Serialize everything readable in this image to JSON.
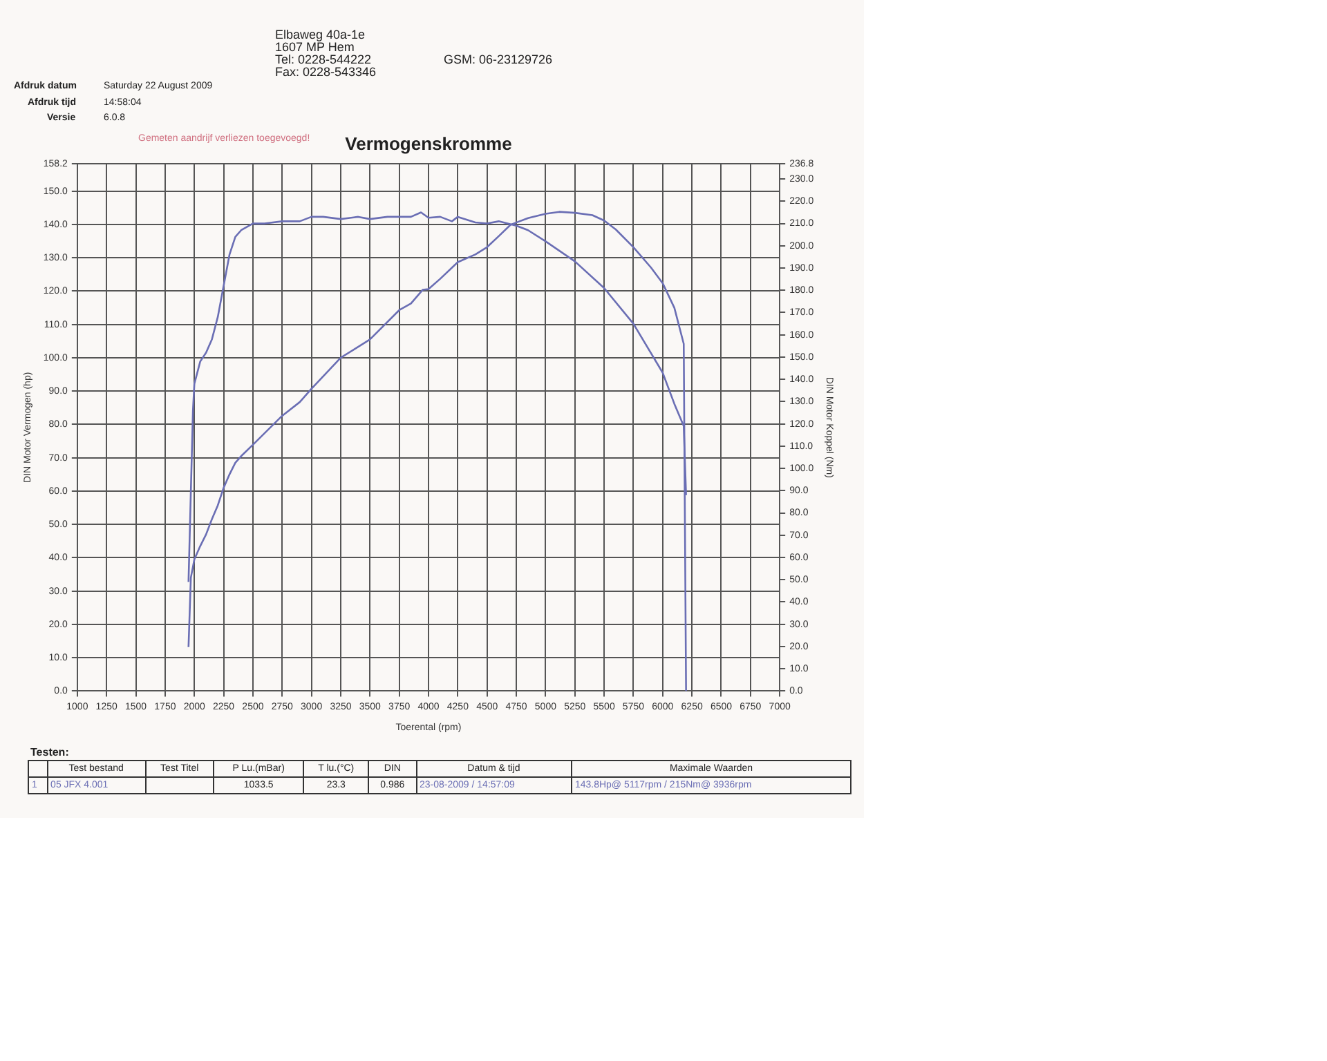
{
  "chart_data": {
    "type": "line",
    "title": "Vermogenskromme",
    "xlabel": "Toerental (rpm)",
    "ylabel": "DIN Motor Vermogen (hp)",
    "y2label": "DIN Motor Koppel (Nm)",
    "annotations": [
      "Elbaweg 40a-1e",
      "1607 MP  Hem",
      "Tel:    0228-544222",
      "Fax:    0228-543346",
      "GSM:    06-23129726",
      "Afdruk datum",
      "Saturday 22 August 2009",
      "Afdruk tijd",
      "14:58:04",
      "Versie",
      "6.0.8",
      "Gemeten aandrijf verliezen toegevoegd!",
      "Testen:",
      "Test bestand",
      "Test Titel",
      "P Lu.(mBar)",
      "T lu.(°C)",
      "DIN",
      "Datum & tijd",
      "Maximale Waarden",
      "1",
      "05 JFX 4.001",
      "1033.5",
      "23.3",
      "0.986",
      "23-08-2009 / 14:57:09",
      "143.8Hp@ 5117rpm / 215Nm@ 3936rpm"
    ],
    "series": [
      {
        "color": "#6a6eb4",
        "x": [
          1950,
          1970,
          2000,
          2050,
          2100,
          2150,
          2200,
          2250,
          2300,
          2350,
          2400,
          2500,
          2750,
          2900,
          3000,
          3250,
          3500,
          3750,
          3850,
          3950,
          4000,
          4100,
          4250,
          4400,
          4500,
          4600,
          4700,
          4750,
          4850,
          5000,
          5117,
          5250,
          5400,
          5500,
          5600,
          5750,
          5900,
          6000,
          6100,
          6180,
          6200
        ],
        "values": [
          13.2,
          34,
          39.5,
          43.5,
          47,
          51.6,
          55.7,
          61,
          65,
          68.5,
          70.5,
          73.9,
          82.6,
          86.7,
          90.7,
          100,
          105.5,
          114.3,
          116.3,
          120.4,
          120.6,
          123.7,
          128.7,
          131,
          133.2,
          136.5,
          139.9,
          140.6,
          141.9,
          143.2,
          143.8,
          143.5,
          142.8,
          141.2,
          138.5,
          133.2,
          127.1,
          122.4,
          115,
          104.2,
          0
        ]
      },
      {
        "color": "#6a6eb4",
        "axis": "y2",
        "x": [
          1950,
          1988,
          2000,
          2050,
          2100,
          2150,
          2200,
          2250,
          2300,
          2350,
          2400,
          2500,
          2600,
          2750,
          2900,
          3000,
          3100,
          3250,
          3400,
          3500,
          3650,
          3750,
          3850,
          3936,
          4000,
          4100,
          4200,
          4250,
          4400,
          4500,
          4600,
          4750,
          4850,
          5000,
          5250,
          5500,
          5750,
          6000,
          6100,
          6180,
          6200
        ],
        "values": [
          49,
          126,
          138,
          148,
          152,
          158,
          168,
          182,
          196,
          204,
          207,
          210,
          210,
          211,
          211,
          213,
          213,
          212,
          213,
          212,
          213,
          213,
          213,
          215,
          212.6,
          213,
          211,
          213,
          210.5,
          210,
          211,
          209,
          207,
          202,
          193,
          181,
          165,
          143,
          129,
          119,
          88
        ]
      }
    ],
    "xlim": [
      1000,
      7000
    ],
    "xticks": [
      1000,
      1250,
      1500,
      1750,
      2000,
      2250,
      2500,
      2750,
      3000,
      3250,
      3500,
      3750,
      4000,
      4250,
      4500,
      4750,
      5000,
      5250,
      5500,
      5750,
      6000,
      6250,
      6500,
      6750,
      7000
    ],
    "ylim": [
      0,
      158.2
    ],
    "yticks": [
      {
        "value": 0,
        "label": "0.0"
      },
      {
        "value": 10,
        "label": "10.0"
      },
      {
        "value": 20,
        "label": "20.0"
      },
      {
        "value": 30,
        "label": "30.0"
      },
      {
        "value": 40,
        "label": "40.0"
      },
      {
        "value": 50,
        "label": "50.0"
      },
      {
        "value": 60,
        "label": "60.0"
      },
      {
        "value": 70,
        "label": "70.0"
      },
      {
        "value": 80,
        "label": "80.0"
      },
      {
        "value": 90,
        "label": "90.0"
      },
      {
        "value": 100,
        "label": "100.0"
      },
      {
        "value": 110,
        "label": "110.0"
      },
      {
        "value": 120,
        "label": "120.0"
      },
      {
        "value": 130,
        "label": "130.0"
      },
      {
        "value": 140,
        "label": "140.0"
      },
      {
        "value": 150,
        "label": "150.0"
      },
      {
        "value": 158.2,
        "label": "158.2"
      }
    ],
    "y2lim": [
      0,
      236.8
    ],
    "y2ticks": [
      {
        "value": 0,
        "label": "0.0"
      },
      {
        "value": 10,
        "label": "10.0"
      },
      {
        "value": 20,
        "label": "20.0"
      },
      {
        "value": 30,
        "label": "30.0"
      },
      {
        "value": 40,
        "label": "40.0"
      },
      {
        "value": 50,
        "label": "50.0"
      },
      {
        "value": 60,
        "label": "60.0"
      },
      {
        "value": 70,
        "label": "70.0"
      },
      {
        "value": 80,
        "label": "80.0"
      },
      {
        "value": 90,
        "label": "90.0"
      },
      {
        "value": 100,
        "label": "100.0"
      },
      {
        "value": 110,
        "label": "110.0"
      },
      {
        "value": 120,
        "label": "120.0"
      },
      {
        "value": 130,
        "label": "130.0"
      },
      {
        "value": 140,
        "label": "140.0"
      },
      {
        "value": 150,
        "label": "150.0"
      },
      {
        "value": 160,
        "label": "160.0"
      },
      {
        "value": 170,
        "label": "170.0"
      },
      {
        "value": 180,
        "label": "180.0"
      },
      {
        "value": 190,
        "label": "190.0"
      },
      {
        "value": 200,
        "label": "200.0"
      },
      {
        "value": 210,
        "label": "210.0"
      },
      {
        "value": 220,
        "label": "220.0"
      },
      {
        "value": 230,
        "label": "230.0"
      },
      {
        "value": 236.8,
        "label": "236.8"
      }
    ],
    "grid": true,
    "legend": false,
    "marker": "none",
    "line_style": "solid"
  }
}
